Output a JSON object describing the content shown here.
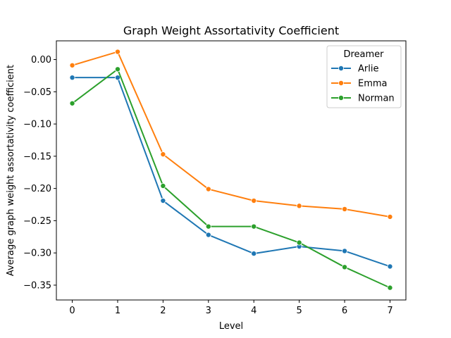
{
  "chart_data": {
    "type": "line",
    "title": "Graph Weight Assortativity Coefficient",
    "xlabel": "Level",
    "ylabel": "Average graph weight assortativity coefficient",
    "x": [
      0,
      1,
      2,
      3,
      4,
      5,
      6,
      7
    ],
    "xticks": [
      "0",
      "1",
      "2",
      "3",
      "4",
      "5",
      "6",
      "7"
    ],
    "xlim": [
      -0.35,
      7.35
    ],
    "ylim": [
      -0.373,
      0.029
    ],
    "yticks": [
      0.0,
      -0.05,
      -0.1,
      -0.15,
      -0.2,
      -0.25,
      -0.3,
      -0.35
    ],
    "ytick_labels": [
      "0.00",
      "−0.05",
      "−0.10",
      "−0.15",
      "−0.20",
      "−0.25",
      "−0.30",
      "−0.35"
    ],
    "grid": false,
    "markers": "circle",
    "legend": {
      "title": "Dreamer",
      "placement": "top-right"
    },
    "series": [
      {
        "name": "Arlie",
        "color": "#1f77b4",
        "values": [
          -0.028,
          -0.028,
          -0.219,
          -0.272,
          -0.301,
          -0.29,
          -0.297,
          -0.321
        ]
      },
      {
        "name": "Emma",
        "color": "#ff7f0e",
        "values": [
          -0.009,
          0.012,
          -0.147,
          -0.201,
          -0.219,
          -0.227,
          -0.232,
          -0.244
        ]
      },
      {
        "name": "Norman",
        "color": "#2ca02c",
        "values": [
          -0.068,
          -0.015,
          -0.196,
          -0.259,
          -0.259,
          -0.284,
          -0.322,
          -0.354
        ]
      }
    ]
  }
}
